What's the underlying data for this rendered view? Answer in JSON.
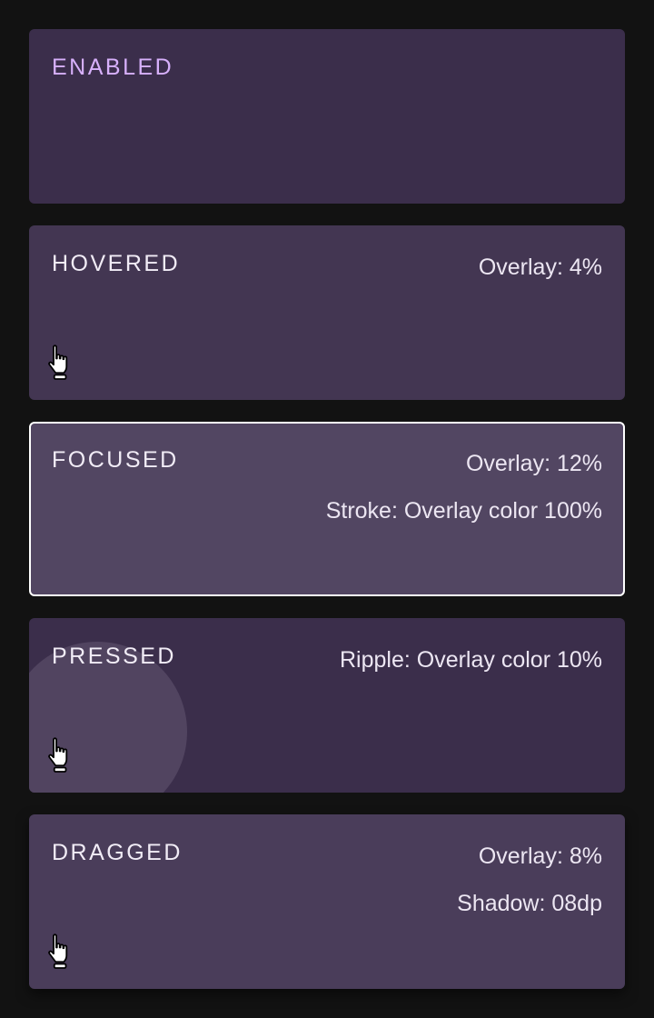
{
  "colors": {
    "background": "#121212",
    "enabled": "#3b2e4b",
    "hovered": "#433652",
    "focused": "#524662",
    "pressed": "#3b2e4b",
    "ripple": "#514460",
    "dragged": "#4a3d5a",
    "accent_label": "#d7b0fb"
  },
  "states": [
    {
      "label": "ENABLED",
      "info": []
    },
    {
      "label": "HOVERED",
      "info": [
        "Overlay: 4%"
      ]
    },
    {
      "label": "FOCUSED",
      "info": [
        "Overlay: 12%",
        "Stroke: Overlay color 100%"
      ]
    },
    {
      "label": "PRESSED",
      "info": [
        "Ripple: Overlay color 10%"
      ]
    },
    {
      "label": "DRAGGED",
      "info": [
        "Overlay: 8%",
        "Shadow: 08dp"
      ]
    }
  ],
  "icons": {
    "cursor": "hand-pointer-icon"
  }
}
